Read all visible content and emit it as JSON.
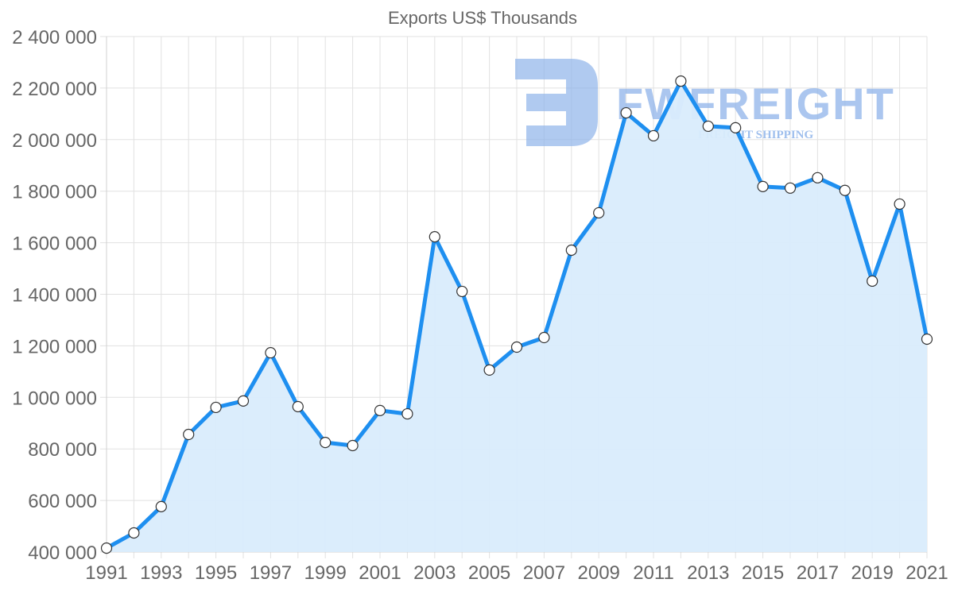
{
  "chart_data": {
    "type": "line",
    "title": "Exports US$ Thousands",
    "xlabel": "",
    "ylabel": "",
    "ylim": [
      400000,
      2400000
    ],
    "yticks": [
      400000,
      600000,
      800000,
      1000000,
      1200000,
      1400000,
      1600000,
      1800000,
      2000000,
      2200000,
      2400000
    ],
    "ytick_labels": [
      "400 000",
      "600 000",
      "800 000",
      "1 000 000",
      "1 200 000",
      "1 400 000",
      "1 600 000",
      "1 800 000",
      "2 000 000",
      "2 200 000",
      "2 400 000"
    ],
    "xtick_labels": [
      "1991",
      "1993",
      "1995",
      "1997",
      "1999",
      "2001",
      "2003",
      "2005",
      "2007",
      "2009",
      "2011",
      "2013",
      "2015",
      "2017",
      "2019",
      "2021"
    ],
    "grid": true,
    "legend": null,
    "fill": "area",
    "x": [
      1991,
      1992,
      1993,
      1994,
      1995,
      1996,
      1997,
      1998,
      1999,
      2000,
      2001,
      2002,
      2003,
      2004,
      2005,
      2006,
      2007,
      2008,
      2009,
      2010,
      2011,
      2012,
      2013,
      2014,
      2015,
      2016,
      2017,
      2018,
      2019,
      2020,
      2021
    ],
    "series": [
      {
        "name": "Exports",
        "values": [
          415000,
          474000,
          576000,
          856000,
          961000,
          986000,
          1173000,
          964000,
          825000,
          813000,
          949000,
          936000,
          1623000,
          1411000,
          1106000,
          1195000,
          1232000,
          1571000,
          1716000,
          2104000,
          2015000,
          2227000,
          2052000,
          2046000,
          1818000,
          1812000,
          1852000,
          1803000,
          1451000,
          1750000,
          1226000
        ]
      }
    ]
  },
  "colors": {
    "line": "#1e8ff0",
    "fill": "#d9ecfc",
    "point_fill": "#ffffff",
    "point_stroke": "#333333",
    "watermark": "#8fb4ea"
  },
  "watermark": {
    "brand": "FWFREIGHT",
    "tagline": "FREIGHT SHIPPING",
    "icon": "fw-logo-icon"
  }
}
